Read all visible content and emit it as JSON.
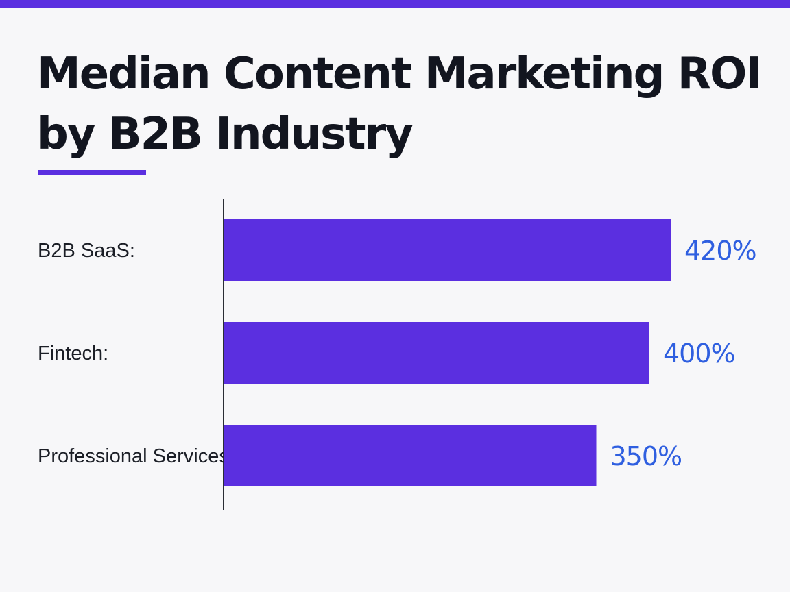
{
  "header": {
    "title": "Median Content Marketing ROI by B2B Industry"
  },
  "colors": {
    "accent": "#5b2fe0",
    "value_text": "#2f5fe0",
    "axis": "#2a2d35",
    "title_text": "#12151f"
  },
  "chart_data": {
    "type": "bar",
    "orientation": "horizontal",
    "title": "Median Content Marketing ROI by B2B Industry",
    "xlabel": "",
    "ylabel": "",
    "categories": [
      "B2B SaaS:",
      "Fintech:",
      "Professional Services:"
    ],
    "values": [
      420,
      400,
      350
    ],
    "value_labels": [
      "420%",
      "400%",
      "350%"
    ],
    "unit": "%",
    "xlim": [
      0,
      420
    ],
    "grid": false,
    "legend": "none"
  }
}
